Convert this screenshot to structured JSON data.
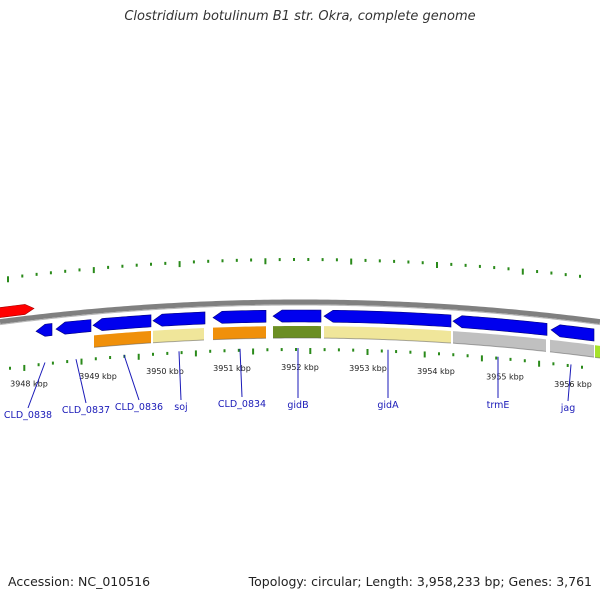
{
  "title": "Clostridium botulinum B1 str. Okra, complete genome",
  "footer": {
    "accession": "Accession: NC_010516",
    "stats": "Topology: circular; Length: 3,958,233 bp; Genes: 3,761"
  },
  "colors": {
    "backbone": "#808080",
    "forward_gene": "#ff0000",
    "reverse_gene": "#0000ee",
    "ticks": "#2a8a1a",
    "gene_label": "#1a1ab8",
    "cog_orange": "#f0900a",
    "cog_paleyellow": "#f0e69a",
    "cog_olive": "#6b8e23",
    "cog_gray": "#c0c0c0",
    "cog_lime": "#a6e22a"
  },
  "scale_labels": [
    "3948 kbp",
    "3949 kbp",
    "3950 kbp",
    "3951 kbp",
    "3952 kbp",
    "3953 kbp",
    "3954 kbp",
    "3955 kbp",
    "3956 kbp"
  ],
  "genes": [
    {
      "label": "CLD_0838"
    },
    {
      "label": "CLD_0837"
    },
    {
      "label": "CLD_0836"
    },
    {
      "label": "soj"
    },
    {
      "label": "CLD_0834"
    },
    {
      "label": "gidB"
    },
    {
      "label": "gidA"
    },
    {
      "label": "trmE"
    },
    {
      "label": "jag"
    }
  ]
}
